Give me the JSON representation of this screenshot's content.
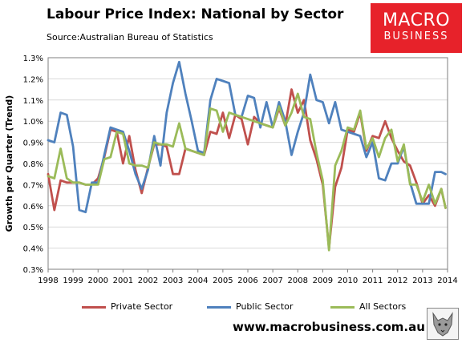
{
  "header": {
    "title": "Labour Price Index: National by Sector",
    "source": "Source:Australian Bureau of Statistics"
  },
  "logo": {
    "line1": "MACRO",
    "line2": "BUSINESS",
    "background": "#e7222a"
  },
  "footer": {
    "url": "www.macrobusiness.com.au",
    "mascot_icon": "wolf-icon"
  },
  "chart_data": {
    "type": "line",
    "title": "Labour Price Index: National by Sector",
    "ylabel": "Growth per Quarter (Trend)",
    "xlabel": "",
    "ylim": [
      0.3,
      1.3
    ],
    "xlim": [
      1998,
      2014
    ],
    "y_ticks": [
      "0.3%",
      "0.4%",
      "0.5%",
      "0.6%",
      "0.7%",
      "0.8%",
      "0.9%",
      "1.0%",
      "1.1%",
      "1.2%",
      "1.3%"
    ],
    "y_tick_values": [
      0.3,
      0.4,
      0.5,
      0.6,
      0.7,
      0.8,
      0.9,
      1.0,
      1.1,
      1.2,
      1.3
    ],
    "x_ticks": [
      "1998",
      "1999",
      "2000",
      "2001",
      "2002",
      "2003",
      "2004",
      "2005",
      "2006",
      "2007",
      "2008",
      "2009",
      "2010",
      "2011",
      "2012",
      "2013",
      "2014"
    ],
    "x_tick_values": [
      1998,
      1999,
      2000,
      2001,
      2002,
      2003,
      2004,
      2005,
      2006,
      2007,
      2008,
      2009,
      2010,
      2011,
      2012,
      2013,
      2014
    ],
    "grid": "horizontal",
    "legend_position": "bottom",
    "series": [
      {
        "name": "Private Sector",
        "color": "#c0504d",
        "points": [
          [
            1998.0,
            0.75
          ],
          [
            1998.25,
            0.58
          ],
          [
            1998.5,
            0.72
          ],
          [
            1998.75,
            0.71
          ],
          [
            1999.0,
            0.71
          ],
          [
            1999.25,
            0.71
          ],
          [
            1999.5,
            0.7
          ],
          [
            1999.75,
            0.7
          ],
          [
            2000.0,
            0.73
          ],
          [
            2000.25,
            0.83
          ],
          [
            2000.5,
            0.96
          ],
          [
            2000.75,
            0.95
          ],
          [
            2001.0,
            0.8
          ],
          [
            2001.25,
            0.93
          ],
          [
            2001.5,
            0.77
          ],
          [
            2001.75,
            0.66
          ],
          [
            2002.0,
            0.78
          ],
          [
            2002.25,
            0.89
          ],
          [
            2002.5,
            0.89
          ],
          [
            2002.75,
            0.88
          ],
          [
            2003.0,
            0.75
          ],
          [
            2003.25,
            0.75
          ],
          [
            2003.5,
            0.87
          ],
          [
            2003.75,
            0.86
          ],
          [
            2004.0,
            0.85
          ],
          [
            2004.25,
            0.84
          ],
          [
            2004.5,
            0.95
          ],
          [
            2004.75,
            0.94
          ],
          [
            2005.0,
            1.04
          ],
          [
            2005.25,
            0.92
          ],
          [
            2005.5,
            1.03
          ],
          [
            2005.75,
            1.01
          ],
          [
            2006.0,
            0.89
          ],
          [
            2006.25,
            1.02
          ],
          [
            2006.5,
            0.99
          ],
          [
            2006.75,
            0.98
          ],
          [
            2007.0,
            0.97
          ],
          [
            2007.25,
            1.06
          ],
          [
            2007.5,
            0.98
          ],
          [
            2007.75,
            1.15
          ],
          [
            2008.0,
            1.04
          ],
          [
            2008.25,
            1.1
          ],
          [
            2008.5,
            0.91
          ],
          [
            2008.75,
            0.82
          ],
          [
            2009.0,
            0.7
          ],
          [
            2009.25,
            0.4
          ],
          [
            2009.5,
            0.69
          ],
          [
            2009.75,
            0.78
          ],
          [
            2010.0,
            0.96
          ],
          [
            2010.25,
            0.95
          ],
          [
            2010.5,
            1.04
          ],
          [
            2010.75,
            0.86
          ],
          [
            2011.0,
            0.93
          ],
          [
            2011.25,
            0.92
          ],
          [
            2011.5,
            1.0
          ],
          [
            2011.75,
            0.92
          ],
          [
            2012.0,
            0.86
          ],
          [
            2012.25,
            0.81
          ],
          [
            2012.5,
            0.79
          ],
          [
            2012.75,
            0.71
          ],
          [
            2013.0,
            0.61
          ],
          [
            2013.25,
            0.65
          ],
          [
            2013.5,
            0.6
          ],
          [
            2013.75,
            0.68
          ],
          [
            2013.92,
            0.59
          ]
        ]
      },
      {
        "name": "Public Sector",
        "color": "#4f81bd",
        "points": [
          [
            1998.0,
            0.91
          ],
          [
            1998.25,
            0.9
          ],
          [
            1998.5,
            1.04
          ],
          [
            1998.75,
            1.03
          ],
          [
            1999.0,
            0.88
          ],
          [
            1999.25,
            0.58
          ],
          [
            1999.5,
            0.57
          ],
          [
            1999.75,
            0.71
          ],
          [
            2000.0,
            0.71
          ],
          [
            2000.25,
            0.84
          ],
          [
            2000.5,
            0.97
          ],
          [
            2000.75,
            0.96
          ],
          [
            2001.0,
            0.95
          ],
          [
            2001.25,
            0.86
          ],
          [
            2001.5,
            0.75
          ],
          [
            2001.75,
            0.68
          ],
          [
            2002.0,
            0.77
          ],
          [
            2002.25,
            0.93
          ],
          [
            2002.5,
            0.79
          ],
          [
            2002.75,
            1.04
          ],
          [
            2003.0,
            1.18
          ],
          [
            2003.25,
            1.28
          ],
          [
            2003.5,
            1.13
          ],
          [
            2003.75,
            1.0
          ],
          [
            2004.0,
            0.86
          ],
          [
            2004.25,
            0.85
          ],
          [
            2004.5,
            1.1
          ],
          [
            2004.75,
            1.2
          ],
          [
            2005.0,
            1.19
          ],
          [
            2005.25,
            1.18
          ],
          [
            2005.5,
            1.03
          ],
          [
            2005.75,
            1.02
          ],
          [
            2006.0,
            1.12
          ],
          [
            2006.25,
            1.11
          ],
          [
            2006.5,
            0.97
          ],
          [
            2006.75,
            1.09
          ],
          [
            2007.0,
            0.97
          ],
          [
            2007.25,
            1.09
          ],
          [
            2007.5,
            1.0
          ],
          [
            2007.75,
            0.84
          ],
          [
            2008.0,
            0.95
          ],
          [
            2008.25,
            1.04
          ],
          [
            2008.5,
            1.22
          ],
          [
            2008.75,
            1.1
          ],
          [
            2009.0,
            1.09
          ],
          [
            2009.25,
            0.99
          ],
          [
            2009.5,
            1.09
          ],
          [
            2009.75,
            0.96
          ],
          [
            2010.0,
            0.95
          ],
          [
            2010.25,
            0.94
          ],
          [
            2010.5,
            0.93
          ],
          [
            2010.75,
            0.83
          ],
          [
            2011.0,
            0.9
          ],
          [
            2011.25,
            0.73
          ],
          [
            2011.5,
            0.72
          ],
          [
            2011.75,
            0.8
          ],
          [
            2012.0,
            0.8
          ],
          [
            2012.25,
            0.88
          ],
          [
            2012.5,
            0.71
          ],
          [
            2012.75,
            0.61
          ],
          [
            2013.0,
            0.61
          ],
          [
            2013.25,
            0.61
          ],
          [
            2013.5,
            0.76
          ],
          [
            2013.75,
            0.76
          ],
          [
            2013.92,
            0.75
          ]
        ]
      },
      {
        "name": "All Sectors",
        "color": "#9bbb59",
        "points": [
          [
            1998.0,
            0.74
          ],
          [
            1998.25,
            0.73
          ],
          [
            1998.5,
            0.87
          ],
          [
            1998.75,
            0.73
          ],
          [
            1999.0,
            0.71
          ],
          [
            1999.25,
            0.71
          ],
          [
            1999.5,
            0.7
          ],
          [
            1999.75,
            0.7
          ],
          [
            2000.0,
            0.7
          ],
          [
            2000.25,
            0.82
          ],
          [
            2000.5,
            0.83
          ],
          [
            2000.75,
            0.95
          ],
          [
            2001.0,
            0.94
          ],
          [
            2001.25,
            0.8
          ],
          [
            2001.5,
            0.79
          ],
          [
            2001.75,
            0.79
          ],
          [
            2002.0,
            0.78
          ],
          [
            2002.25,
            0.9
          ],
          [
            2002.5,
            0.89
          ],
          [
            2002.75,
            0.89
          ],
          [
            2003.0,
            0.88
          ],
          [
            2003.25,
            0.99
          ],
          [
            2003.5,
            0.87
          ],
          [
            2003.75,
            0.86
          ],
          [
            2004.0,
            0.85
          ],
          [
            2004.25,
            0.84
          ],
          [
            2004.5,
            1.06
          ],
          [
            2004.75,
            1.05
          ],
          [
            2005.0,
            0.95
          ],
          [
            2005.25,
            1.04
          ],
          [
            2005.5,
            1.03
          ],
          [
            2005.75,
            1.02
          ],
          [
            2006.0,
            1.01
          ],
          [
            2006.25,
            1.0
          ],
          [
            2006.5,
            0.99
          ],
          [
            2006.75,
            0.98
          ],
          [
            2007.0,
            0.97
          ],
          [
            2007.25,
            1.07
          ],
          [
            2007.5,
            0.98
          ],
          [
            2007.75,
            1.04
          ],
          [
            2008.0,
            1.13
          ],
          [
            2008.25,
            1.02
          ],
          [
            2008.5,
            1.01
          ],
          [
            2008.75,
            0.85
          ],
          [
            2009.0,
            0.72
          ],
          [
            2009.25,
            0.39
          ],
          [
            2009.5,
            0.79
          ],
          [
            2009.75,
            0.86
          ],
          [
            2010.0,
            0.97
          ],
          [
            2010.25,
            0.96
          ],
          [
            2010.5,
            1.05
          ],
          [
            2010.75,
            0.87
          ],
          [
            2011.0,
            0.92
          ],
          [
            2011.25,
            0.83
          ],
          [
            2011.5,
            0.92
          ],
          [
            2011.75,
            0.96
          ],
          [
            2012.0,
            0.81
          ],
          [
            2012.25,
            0.89
          ],
          [
            2012.5,
            0.7
          ],
          [
            2012.75,
            0.7
          ],
          [
            2013.0,
            0.62
          ],
          [
            2013.25,
            0.7
          ],
          [
            2013.5,
            0.61
          ],
          [
            2013.75,
            0.68
          ],
          [
            2013.92,
            0.59
          ]
        ]
      }
    ]
  }
}
